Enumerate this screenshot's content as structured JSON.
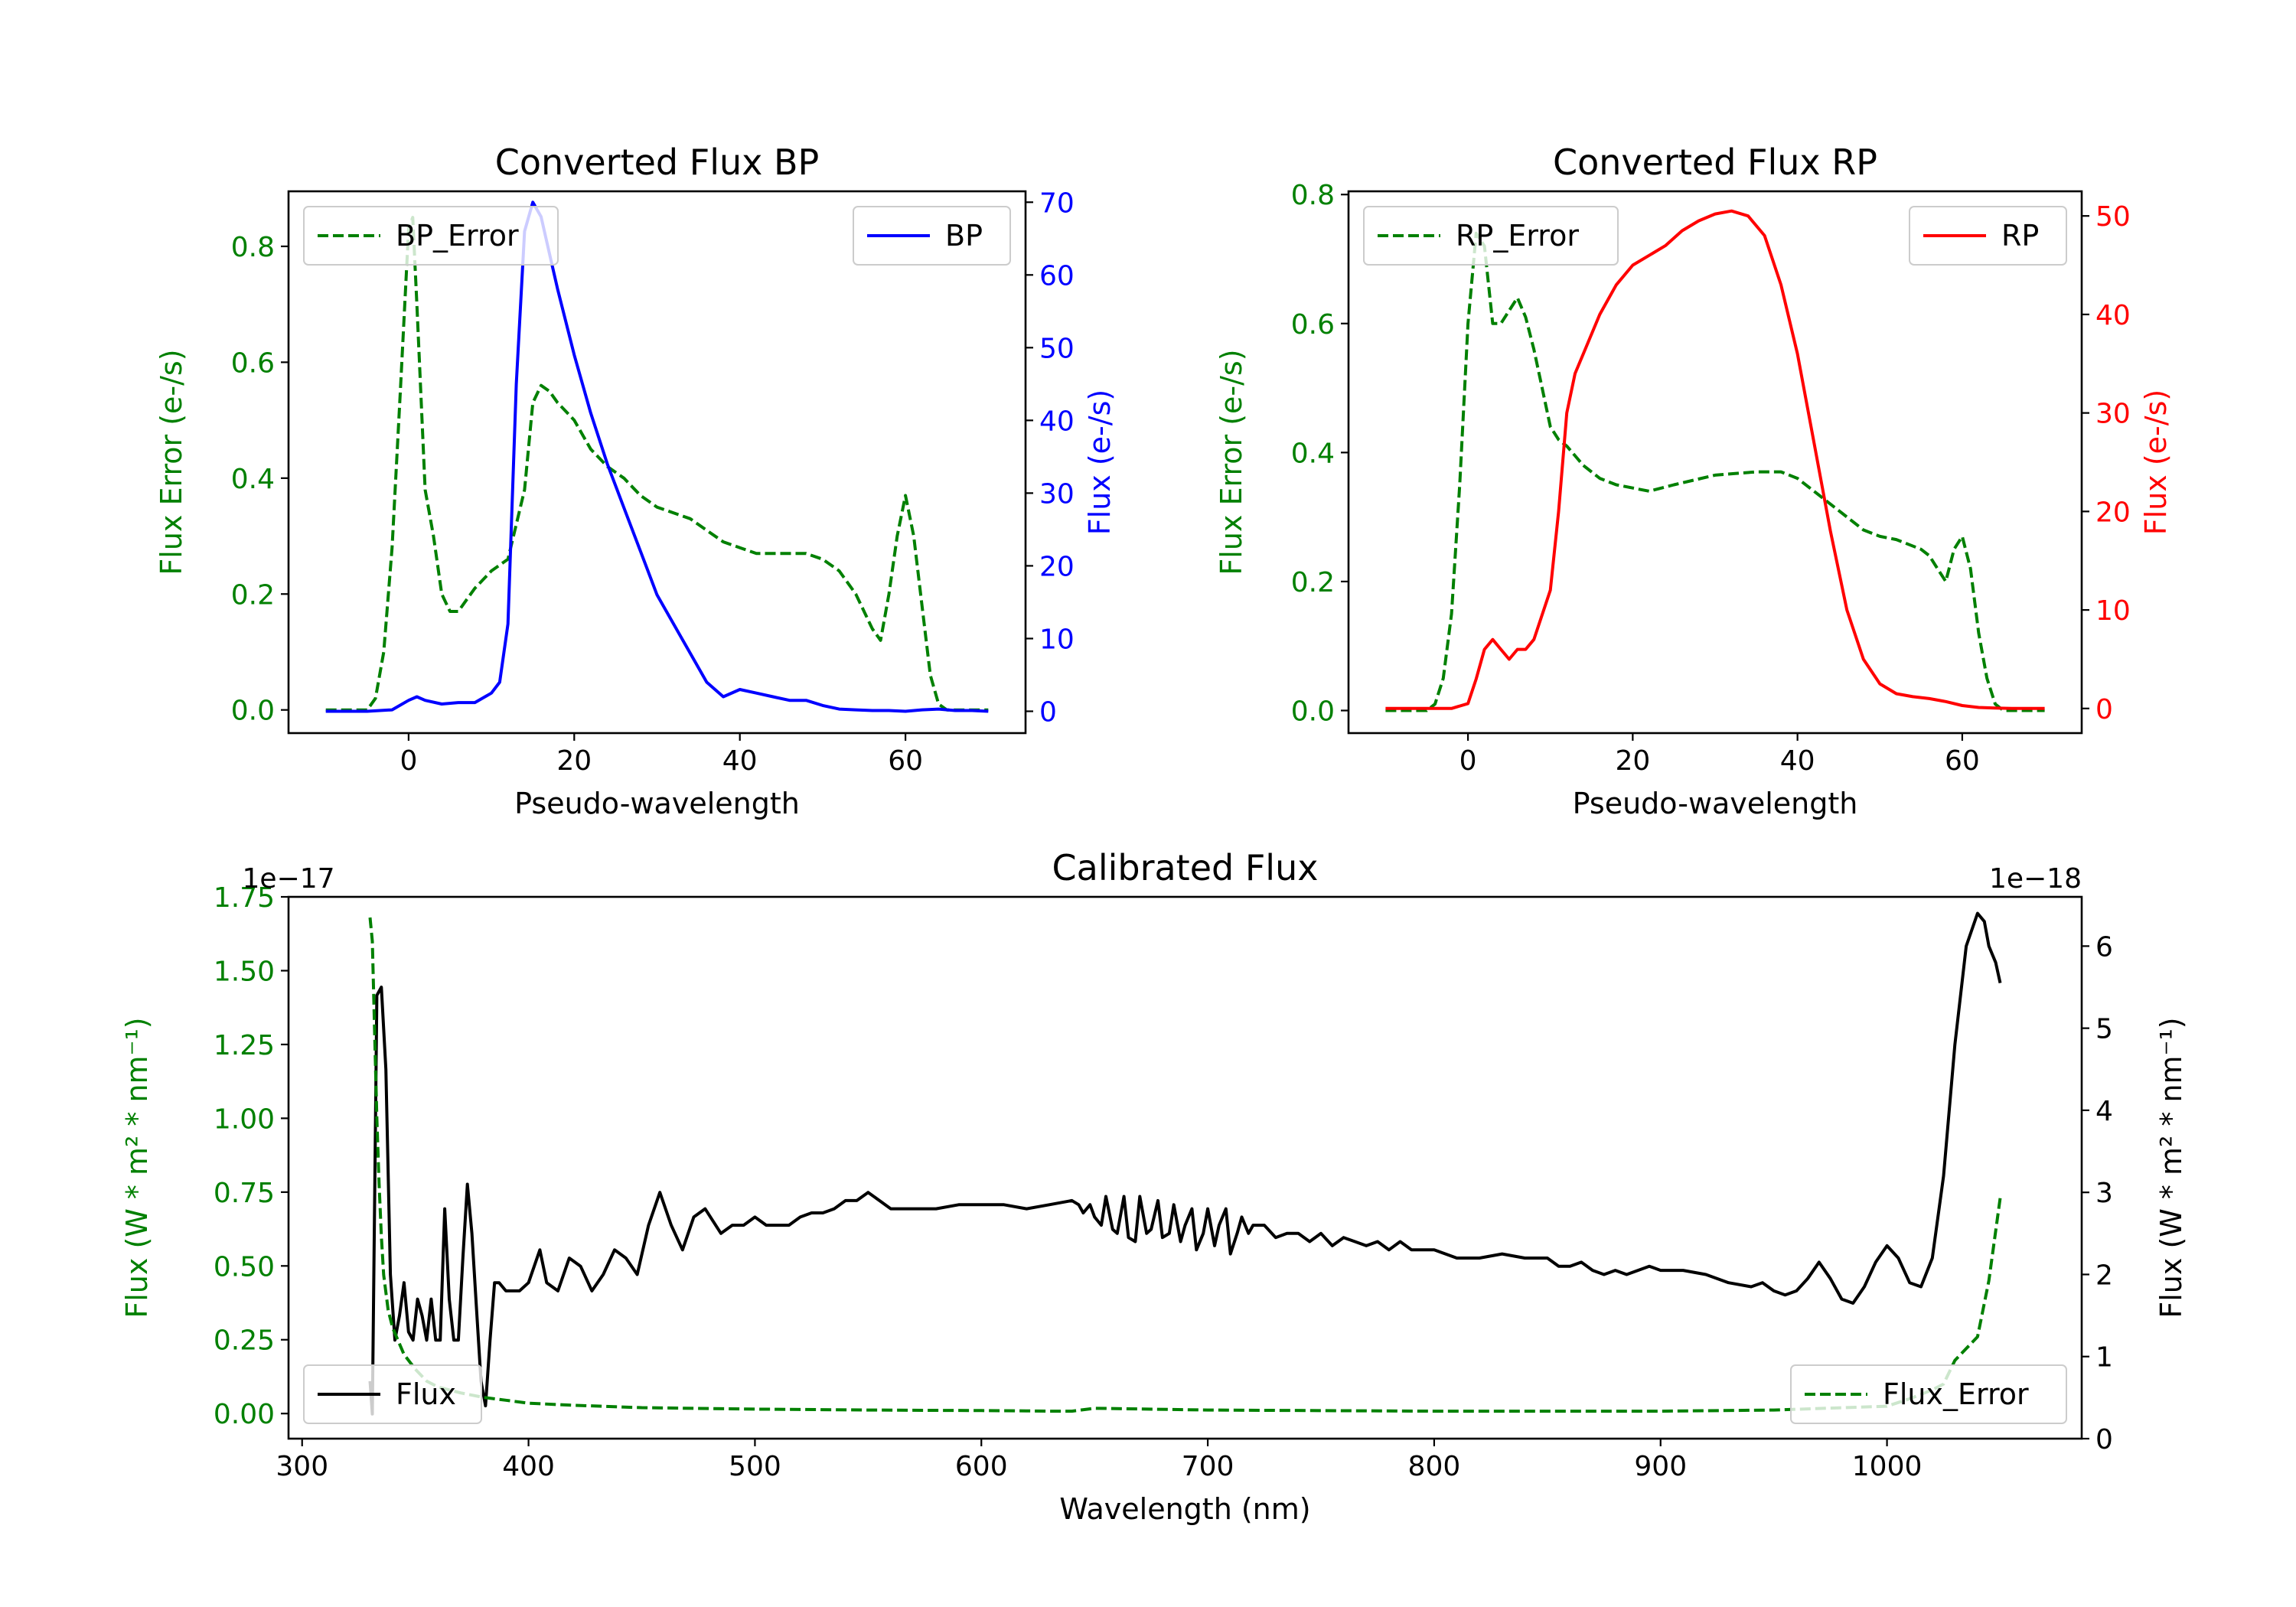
{
  "colors": {
    "green": "#008000",
    "blue": "#0000ff",
    "red": "#ff0000",
    "black": "#000000"
  },
  "chart_data": [
    {
      "id": "bp",
      "type": "line",
      "title": "Converted Flux BP",
      "xlabel": "Pseudo-wavelength",
      "xlim": [
        -14.5,
        74.5
      ],
      "xticks": [
        0,
        20,
        40,
        60
      ],
      "left_axis": {
        "label": "Flux Error (e-/s)",
        "color": "#008000",
        "ylim": [
          -0.04,
          0.895
        ],
        "ticks": [
          0.0,
          0.2,
          0.4,
          0.6,
          0.8
        ]
      },
      "right_axis": {
        "label": "Flux (e-/s)",
        "color": "#0000ff",
        "ylim": [
          -3,
          71.5
        ],
        "ticks": [
          0,
          10,
          20,
          30,
          40,
          50,
          60,
          70
        ]
      },
      "series": [
        {
          "name": "BP_Error",
          "axis": "left",
          "color": "#008000",
          "style": "dashed",
          "legend_pos": "upper-left",
          "x": [
            -10,
            -5,
            -4,
            -3,
            -2,
            -1,
            0,
            0.5,
            1,
            2,
            3,
            4,
            5,
            6,
            7,
            8,
            10,
            12,
            14,
            15,
            16,
            17,
            18,
            20,
            22,
            24,
            26,
            28,
            30,
            32,
            34,
            36,
            38,
            40,
            42,
            44,
            46,
            48,
            50,
            52,
            54,
            56,
            57,
            58,
            59,
            60,
            61,
            62,
            63,
            64,
            65,
            66,
            70
          ],
          "y": [
            0.0,
            0.0,
            0.02,
            0.1,
            0.28,
            0.55,
            0.83,
            0.85,
            0.7,
            0.38,
            0.3,
            0.2,
            0.17,
            0.17,
            0.19,
            0.21,
            0.24,
            0.26,
            0.38,
            0.53,
            0.56,
            0.55,
            0.53,
            0.5,
            0.45,
            0.42,
            0.4,
            0.37,
            0.35,
            0.34,
            0.33,
            0.31,
            0.29,
            0.28,
            0.27,
            0.27,
            0.27,
            0.27,
            0.26,
            0.24,
            0.2,
            0.14,
            0.12,
            0.2,
            0.3,
            0.37,
            0.3,
            0.18,
            0.06,
            0.01,
            0.0,
            0.0,
            0.0
          ]
        },
        {
          "name": "BP",
          "axis": "right",
          "color": "#0000ff",
          "style": "solid",
          "legend_pos": "upper-right",
          "x": [
            -10,
            -5,
            -2,
            0,
            1,
            2,
            4,
            6,
            8,
            10,
            11,
            12,
            13,
            14,
            15,
            16,
            17,
            18,
            20,
            22,
            24,
            26,
            28,
            30,
            32,
            34,
            36,
            38,
            40,
            42,
            44,
            46,
            48,
            50,
            52,
            54,
            56,
            58,
            60,
            62,
            64,
            66,
            68,
            70
          ],
          "y": [
            0,
            0,
            0.2,
            1.5,
            2,
            1.5,
            1,
            1.2,
            1.2,
            2.5,
            4,
            12,
            45,
            66,
            70,
            68,
            63,
            58,
            49,
            41,
            34,
            28,
            22,
            16,
            12,
            8,
            4,
            2,
            3,
            2.5,
            2,
            1.5,
            1.5,
            0.8,
            0.3,
            0.2,
            0.1,
            0.1,
            0,
            0.2,
            0.3,
            0.1,
            0.1,
            0
          ]
        }
      ]
    },
    {
      "id": "rp",
      "type": "line",
      "title": "Converted Flux RP",
      "xlabel": "Pseudo-wavelength",
      "xlim": [
        -14.5,
        74.5
      ],
      "xticks": [
        0,
        20,
        40,
        60
      ],
      "left_axis": {
        "label": "Flux Error (e-/s)",
        "color": "#008000",
        "ylim": [
          -0.035,
          0.805
        ],
        "ticks": [
          0.0,
          0.2,
          0.4,
          0.6,
          0.8
        ]
      },
      "right_axis": {
        "label": "Flux (e-/s)",
        "color": "#ff0000",
        "ylim": [
          -2.5,
          52.5
        ],
        "ticks": [
          0,
          10,
          20,
          30,
          40,
          50
        ]
      },
      "series": [
        {
          "name": "RP_Error",
          "axis": "left",
          "color": "#008000",
          "style": "dashed",
          "legend_pos": "upper-left",
          "x": [
            -10,
            -5,
            -4,
            -3,
            -2,
            -1,
            0,
            1,
            2,
            3,
            4,
            5,
            6,
            7,
            8,
            9,
            10,
            11,
            12,
            14,
            16,
            18,
            20,
            22,
            25,
            30,
            35,
            38,
            40,
            42,
            45,
            48,
            50,
            52,
            55,
            56,
            57,
            58,
            59,
            60,
            61,
            62,
            63,
            64,
            65,
            70
          ],
          "y": [
            0.0,
            0.0,
            0.01,
            0.05,
            0.15,
            0.35,
            0.6,
            0.74,
            0.72,
            0.6,
            0.6,
            0.62,
            0.64,
            0.61,
            0.56,
            0.5,
            0.44,
            0.42,
            0.41,
            0.38,
            0.36,
            0.35,
            0.345,
            0.34,
            0.35,
            0.365,
            0.37,
            0.37,
            0.36,
            0.34,
            0.31,
            0.28,
            0.27,
            0.265,
            0.25,
            0.24,
            0.22,
            0.2,
            0.25,
            0.27,
            0.22,
            0.12,
            0.05,
            0.01,
            0.0,
            0.0
          ]
        },
        {
          "name": "RP",
          "axis": "right",
          "color": "#ff0000",
          "style": "solid",
          "legend_pos": "upper-right",
          "x": [
            -10,
            -2,
            0,
            1,
            2,
            3,
            4,
            5,
            6,
            7,
            8,
            10,
            11,
            12,
            13,
            14,
            16,
            18,
            20,
            22,
            24,
            26,
            28,
            30,
            32,
            34,
            36,
            38,
            40,
            42,
            44,
            46,
            48,
            50,
            52,
            54,
            56,
            58,
            60,
            62,
            64,
            66,
            70
          ],
          "y": [
            0,
            0,
            0.5,
            3,
            6,
            7,
            6,
            5,
            6,
            6,
            7,
            12,
            20,
            30,
            34,
            36,
            40,
            43,
            45,
            46,
            47,
            48.5,
            49.5,
            50.2,
            50.5,
            50,
            48,
            43,
            36,
            27,
            18,
            10,
            5,
            2.5,
            1.5,
            1.2,
            1,
            0.7,
            0.3,
            0.1,
            0.05,
            0,
            0
          ]
        }
      ]
    },
    {
      "id": "cal",
      "type": "line",
      "title": "Calibrated Flux",
      "xlabel": "Wavelength (nm)",
      "xlim": [
        294,
        1086
      ],
      "xticks": [
        300,
        400,
        500,
        600,
        700,
        800,
        900,
        1000
      ],
      "left_axis": {
        "label": "Flux (W * m² * nm⁻¹)",
        "color": "#008000",
        "ylim": [
          -0.085,
          1.75
        ],
        "ticks": [
          0.0,
          0.25,
          0.5,
          0.75,
          1.0,
          1.25,
          1.5,
          1.75
        ],
        "tick_labels": [
          "0.00",
          "0.25",
          "0.50",
          "0.75",
          "1.00",
          "1.25",
          "1.50",
          "1.75"
        ],
        "offset_text": "1e−17"
      },
      "right_axis": {
        "label": "Flux (W * m² * nm⁻¹)",
        "color": "#000000",
        "ylim": [
          0,
          6.6
        ],
        "ticks": [
          0,
          1,
          2,
          3,
          4,
          5,
          6
        ],
        "offset_text": "1e−18"
      },
      "series": [
        {
          "name": "Flux",
          "axis": "right",
          "color": "#000000",
          "style": "solid",
          "legend_pos": "lower-left",
          "x": [
            330,
            331,
            333,
            335,
            337,
            339,
            341,
            343,
            345,
            347,
            349,
            351,
            353,
            355,
            357,
            359,
            361,
            363,
            365,
            367,
            369,
            371,
            373,
            375,
            377,
            379,
            381,
            383,
            385,
            387,
            390,
            393,
            396,
            400,
            405,
            408,
            413,
            418,
            423,
            428,
            433,
            438,
            443,
            448,
            453,
            458,
            463,
            468,
            473,
            478,
            485,
            490,
            495,
            500,
            505,
            510,
            515,
            520,
            525,
            530,
            535,
            540,
            545,
            550,
            555,
            560,
            565,
            570,
            575,
            580,
            590,
            600,
            610,
            620,
            630,
            640,
            643,
            645,
            648,
            650,
            653,
            655,
            658,
            660,
            663,
            665,
            668,
            670,
            673,
            675,
            678,
            680,
            683,
            685,
            688,
            690,
            693,
            695,
            698,
            700,
            703,
            705,
            708,
            710,
            713,
            715,
            718,
            720,
            725,
            730,
            735,
            740,
            745,
            750,
            755,
            760,
            765,
            770,
            775,
            780,
            785,
            790,
            795,
            800,
            810,
            820,
            830,
            840,
            850,
            855,
            860,
            865,
            870,
            875,
            880,
            885,
            890,
            895,
            900,
            910,
            920,
            930,
            940,
            945,
            950,
            955,
            960,
            965,
            970,
            975,
            980,
            985,
            990,
            995,
            1000,
            1005,
            1010,
            1015,
            1020,
            1025,
            1030,
            1035,
            1040,
            1043,
            1045,
            1048,
            1050
          ],
          "y": [
            0.7,
            0.3,
            5.4,
            5.5,
            4.5,
            2.0,
            1.2,
            1.5,
            1.9,
            1.3,
            1.2,
            1.7,
            1.5,
            1.2,
            1.7,
            1.2,
            1.2,
            2.8,
            1.7,
            1.2,
            1.2,
            2.2,
            3.1,
            2.5,
            1.6,
            0.7,
            0.4,
            1.2,
            1.9,
            1.9,
            1.8,
            1.8,
            1.8,
            1.9,
            2.3,
            1.9,
            1.8,
            2.2,
            2.1,
            1.8,
            2.0,
            2.3,
            2.2,
            2.0,
            2.6,
            3.0,
            2.6,
            2.3,
            2.7,
            2.8,
            2.5,
            2.6,
            2.6,
            2.7,
            2.6,
            2.6,
            2.6,
            2.7,
            2.75,
            2.75,
            2.8,
            2.9,
            2.9,
            3.0,
            2.9,
            2.8,
            2.8,
            2.8,
            2.8,
            2.8,
            2.85,
            2.85,
            2.85,
            2.8,
            2.85,
            2.9,
            2.85,
            2.75,
            2.85,
            2.7,
            2.6,
            2.95,
            2.55,
            2.5,
            2.95,
            2.45,
            2.4,
            2.95,
            2.5,
            2.55,
            2.9,
            2.45,
            2.5,
            2.85,
            2.4,
            2.6,
            2.8,
            2.3,
            2.5,
            2.8,
            2.35,
            2.6,
            2.8,
            2.25,
            2.5,
            2.7,
            2.5,
            2.6,
            2.6,
            2.45,
            2.5,
            2.5,
            2.4,
            2.5,
            2.35,
            2.45,
            2.4,
            2.35,
            2.4,
            2.3,
            2.4,
            2.3,
            2.3,
            2.3,
            2.2,
            2.2,
            2.25,
            2.2,
            2.2,
            2.1,
            2.1,
            2.15,
            2.05,
            2.0,
            2.05,
            2.0,
            2.05,
            2.1,
            2.05,
            2.05,
            2.0,
            1.9,
            1.85,
            1.9,
            1.8,
            1.75,
            1.8,
            1.95,
            2.15,
            1.95,
            1.7,
            1.65,
            1.85,
            2.15,
            2.35,
            2.2,
            1.9,
            1.85,
            2.2,
            3.2,
            4.8,
            6.0,
            6.4,
            6.3,
            6.0,
            5.8,
            5.55
          ]
        },
        {
          "name": "Flux_Error",
          "axis": "left",
          "color": "#008000",
          "style": "dashed",
          "legend_pos": "lower-right",
          "x": [
            330,
            331,
            332,
            333,
            334,
            335,
            336,
            338,
            340,
            345,
            350,
            355,
            360,
            370,
            380,
            390,
            400,
            420,
            450,
            500,
            550,
            600,
            620,
            630,
            640,
            650,
            700,
            800,
            900,
            950,
            1000,
            1010,
            1020,
            1025,
            1030,
            1035,
            1040,
            1045,
            1050
          ],
          "y": [
            1.68,
            1.6,
            1.3,
            1.0,
            0.78,
            0.6,
            0.47,
            0.35,
            0.29,
            0.2,
            0.15,
            0.11,
            0.09,
            0.07,
            0.055,
            0.045,
            0.035,
            0.028,
            0.02,
            0.015,
            0.012,
            0.01,
            0.009,
            0.008,
            0.008,
            0.018,
            0.012,
            0.008,
            0.008,
            0.012,
            0.025,
            0.05,
            0.08,
            0.1,
            0.18,
            0.22,
            0.26,
            0.45,
            0.73
          ]
        }
      ]
    }
  ]
}
